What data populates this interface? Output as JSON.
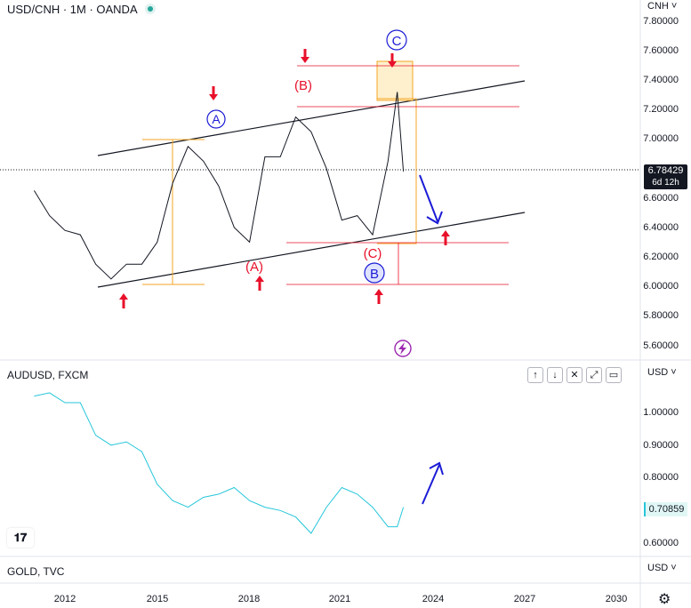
{
  "header": {
    "title": "USD/CNH · 1M · OANDA"
  },
  "main_pane": {
    "unit": "CNH ˅",
    "axis_ticks": [
      "7.80000",
      "7.60000",
      "7.40000",
      "7.20000",
      "7.00000",
      "6.60000",
      "6.40000",
      "6.20000",
      "6.00000",
      "5.80000",
      "5.60000"
    ],
    "last_price": "6.78429",
    "countdown": "6d 12h"
  },
  "sub_pane": {
    "label": "AUDUSD, FXCM",
    "unit": "USD ˅",
    "axis_ticks": [
      "1.00000",
      "0.90000",
      "0.80000",
      "0.60000"
    ],
    "last_price": "0.70859",
    "buttons": [
      "↑",
      "↓",
      "✕",
      "⤢",
      "▭"
    ]
  },
  "bottom_pane": {
    "label": "GOLD, TVC",
    "unit": "USD ˅"
  },
  "time_axis": [
    "2012",
    "2015",
    "2018",
    "2021",
    "2024",
    "2027",
    "2030"
  ],
  "icons": {
    "settings": "gear-icon",
    "logo": "tradingview-logo",
    "lightning": "lightning-icon"
  },
  "colors": {
    "wave_red": "#e8102a",
    "wave_blue": "#1b1bd6",
    "orange": "#f5a623",
    "aud_line": "#26c6da",
    "channel": "#131722"
  },
  "annotations": {
    "A_circle": "A",
    "B_circle": "B",
    "C_circle": "C",
    "A_paren": "(A)",
    "B_paren": "(B)",
    "C_paren": "(C)"
  },
  "chart_data": [
    {
      "type": "line",
      "series": [
        {
          "x": [
            2011.0,
            2011.5,
            2012.0,
            2012.5,
            2013.0,
            2013.5,
            2014.0,
            2014.5,
            2015.0,
            2015.5,
            2016.0,
            2016.5,
            2017.0,
            2017.5,
            2018.0,
            2018.5,
            2019.0,
            2019.5,
            2020.0,
            2020.5,
            2021.0,
            2021.5,
            2022.0,
            2022.5,
            2022.8,
            2023.0
          ],
          "y": [
            6.65,
            6.48,
            6.38,
            6.35,
            6.15,
            6.05,
            6.15,
            6.15,
            6.3,
            6.7,
            6.95,
            6.85,
            6.68,
            6.4,
            6.3,
            6.88,
            6.88,
            7.15,
            7.05,
            6.8,
            6.45,
            6.48,
            6.35,
            6.85,
            7.32,
            6.78
          ]
        }
      ],
      "ylim": [
        5.5,
        7.9
      ]
    },
    {
      "type": "line",
      "series": [
        {
          "x": [
            2011.0,
            2011.5,
            2012.0,
            2012.5,
            2013.0,
            2013.5,
            2014.0,
            2014.5,
            2015.0,
            2015.5,
            2016.0,
            2016.5,
            2017.0,
            2017.5,
            2018.0,
            2018.5,
            2019.0,
            2019.5,
            2020.0,
            2020.5,
            2021.0,
            2021.5,
            2022.0,
            2022.5,
            2022.8,
            2023.0
          ],
          "y": [
            1.05,
            1.06,
            1.03,
            1.03,
            0.93,
            0.9,
            0.91,
            0.88,
            0.78,
            0.73,
            0.71,
            0.74,
            0.75,
            0.77,
            0.73,
            0.71,
            0.7,
            0.68,
            0.63,
            0.71,
            0.77,
            0.75,
            0.71,
            0.65,
            0.65,
            0.71
          ]
        }
      ],
      "ylim": [
        0.58,
        1.09
      ]
    }
  ]
}
